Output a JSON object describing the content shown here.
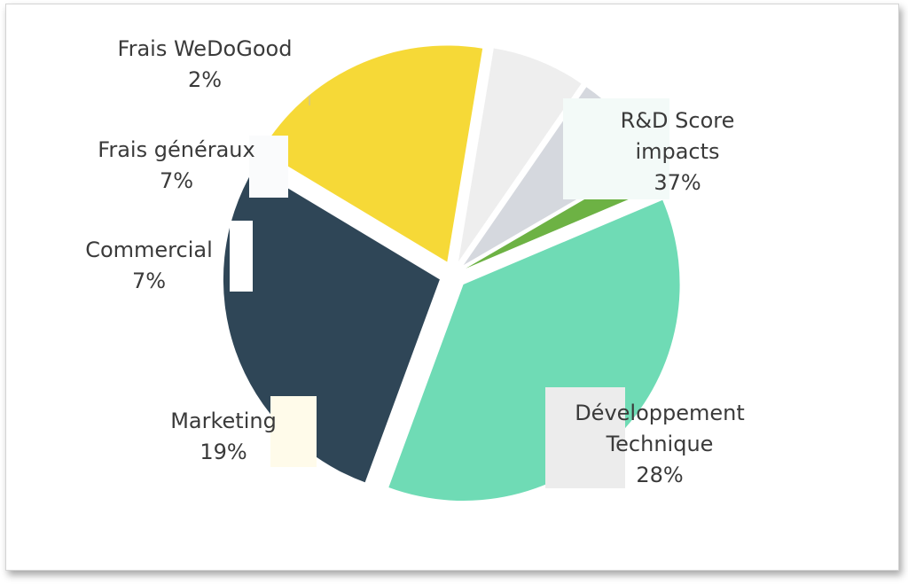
{
  "chart_data": {
    "type": "pie",
    "exploded": true,
    "legend": "none",
    "slices": [
      {
        "name": "R&D Score impacts",
        "label_lines": [
          "R&D Score",
          "impacts"
        ],
        "percent_label": "37%",
        "value": 37,
        "color": "#6fdbb5",
        "label_box": "#f3faf8"
      },
      {
        "name": "Développement Technique",
        "label_lines": [
          "Développement",
          "Technique"
        ],
        "percent_label": "28%",
        "value": 28,
        "color": "#2f4657",
        "label_box": "#ececec"
      },
      {
        "name": "Marketing",
        "label_lines": [
          "Marketing"
        ],
        "percent_label": "19%",
        "value": 19,
        "color": "#f6d937",
        "label_box": "#fffbea"
      },
      {
        "name": "Commercial",
        "label_lines": [
          "Commercial"
        ],
        "percent_label": "7%",
        "value": 7,
        "color": "#eeeeee",
        "label_box": "#ffffff"
      },
      {
        "name": "Frais généraux",
        "label_lines": [
          "Frais généraux"
        ],
        "percent_label": "7%",
        "value": 7,
        "color": "#d5d8de",
        "label_box": "#fafbfc"
      },
      {
        "name": "Frais WeDoGood",
        "label_lines": [
          "Frais WeDoGood"
        ],
        "percent_label": "2%",
        "value": 2,
        "color": "#6db244",
        "label_box": "#ffffff"
      }
    ]
  }
}
